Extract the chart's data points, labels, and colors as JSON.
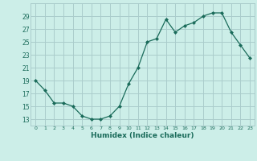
{
  "x": [
    0,
    1,
    2,
    3,
    4,
    5,
    6,
    7,
    8,
    9,
    10,
    11,
    12,
    13,
    14,
    15,
    16,
    17,
    18,
    19,
    20,
    21,
    22,
    23
  ],
  "y": [
    19,
    17.5,
    15.5,
    15.5,
    15,
    13.5,
    13,
    13,
    13.5,
    15,
    18.5,
    21,
    25,
    25.5,
    28.5,
    26.5,
    27.5,
    28,
    29,
    29.5,
    29.5,
    26.5,
    24.5,
    22.5
  ],
  "line_color": "#1a6b5a",
  "marker_color": "#1a6b5a",
  "bg_color": "#cceee8",
  "grid_color": "#aacccc",
  "xlabel": "Humidex (Indice chaleur)",
  "xlim": [
    -0.5,
    23.5
  ],
  "ylim": [
    12,
    31
  ],
  "yticks": [
    13,
    15,
    17,
    19,
    21,
    23,
    25,
    27,
    29
  ],
  "xticks": [
    0,
    1,
    2,
    3,
    4,
    5,
    6,
    7,
    8,
    9,
    10,
    11,
    12,
    13,
    14,
    15,
    16,
    17,
    18,
    19,
    20,
    21,
    22,
    23
  ]
}
